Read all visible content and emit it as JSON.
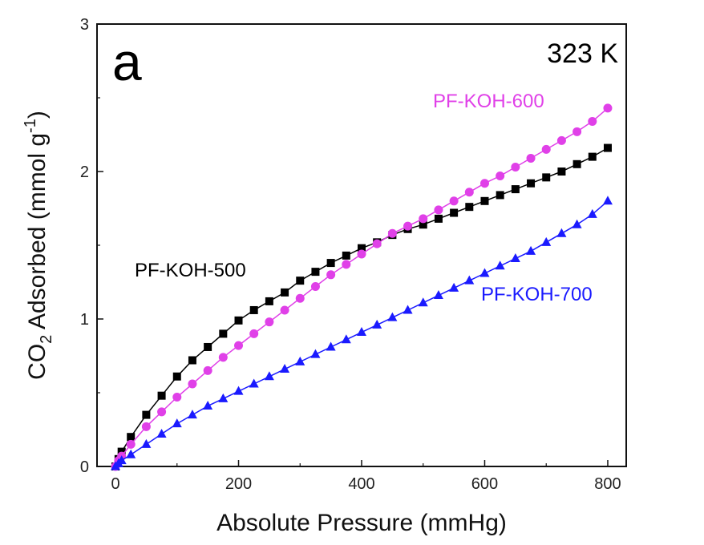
{
  "chart_data": {
    "type": "line",
    "panel_label": "a",
    "annotation": "323 K",
    "xlabel": "Absolute Pressure (mmHg)",
    "ylabel_main": "CO",
    "ylabel_sub": "2",
    "ylabel_rest": " Adsorbed (mmol g",
    "ylabel_sup": "-1",
    "ylabel_close": ")",
    "xlim": [
      -30,
      830
    ],
    "ylim": [
      0,
      3
    ],
    "xticks": [
      0,
      200,
      400,
      600,
      800
    ],
    "yticks": [
      0,
      1,
      2,
      3
    ],
    "grid": false,
    "x": [
      0,
      5,
      10,
      25,
      50,
      75,
      100,
      125,
      150,
      175,
      200,
      225,
      250,
      275,
      300,
      325,
      350,
      375,
      400,
      425,
      450,
      475,
      500,
      525,
      550,
      575,
      600,
      625,
      650,
      675,
      700,
      725,
      750,
      775,
      800
    ],
    "series": [
      {
        "name": "PF-KOH-500",
        "color": "#000000",
        "marker": "square",
        "values": [
          0.0,
          0.05,
          0.1,
          0.2,
          0.35,
          0.48,
          0.61,
          0.72,
          0.81,
          0.9,
          0.99,
          1.06,
          1.12,
          1.18,
          1.26,
          1.32,
          1.38,
          1.43,
          1.48,
          1.52,
          1.57,
          1.61,
          1.64,
          1.68,
          1.72,
          1.76,
          1.8,
          1.84,
          1.88,
          1.92,
          1.96,
          2.0,
          2.05,
          2.1,
          2.16
        ]
      },
      {
        "name": "PF-KOH-600",
        "color": "#e040e8",
        "marker": "circle",
        "values": [
          0.0,
          0.04,
          0.07,
          0.15,
          0.27,
          0.37,
          0.47,
          0.56,
          0.65,
          0.74,
          0.82,
          0.9,
          0.98,
          1.06,
          1.14,
          1.22,
          1.3,
          1.37,
          1.44,
          1.51,
          1.58,
          1.63,
          1.68,
          1.74,
          1.8,
          1.86,
          1.92,
          1.97,
          2.03,
          2.09,
          2.15,
          2.21,
          2.27,
          2.34,
          2.43
        ]
      },
      {
        "name": "PF-KOH-700",
        "color": "#1a1aff",
        "marker": "triangle",
        "values": [
          0.0,
          0.02,
          0.04,
          0.08,
          0.15,
          0.22,
          0.29,
          0.35,
          0.41,
          0.46,
          0.51,
          0.56,
          0.61,
          0.66,
          0.71,
          0.76,
          0.81,
          0.86,
          0.91,
          0.96,
          1.01,
          1.06,
          1.11,
          1.16,
          1.21,
          1.26,
          1.31,
          1.36,
          1.41,
          1.46,
          1.52,
          1.58,
          1.64,
          1.71,
          1.8
        ]
      }
    ]
  }
}
